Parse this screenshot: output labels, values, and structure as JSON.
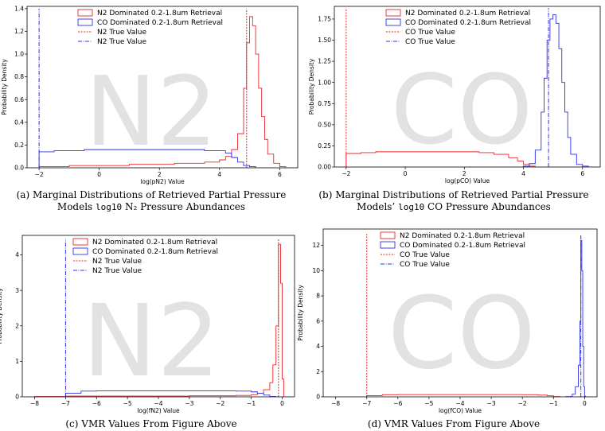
{
  "watermarks": [
    "N2",
    "CO",
    "N2",
    "CO"
  ],
  "colors": {
    "n2": "#e8262a",
    "co": "#2d31e8"
  },
  "captions": [
    {
      "line1": "(a) Marginal Distributions of Retrieved Partial Pressure",
      "line2_pre": "Models ",
      "line2_mono": "log10",
      "line2_post": " N₂ Pressure Abundances"
    },
    {
      "line1": "(b) Marginal Distributions of Retrieved Partial Pressure",
      "line2_pre": "Models’ ",
      "line2_mono": "log10",
      "line2_post": " CO Pressure Abundances"
    },
    {
      "line1": "(c) VMR Values From Figure Above",
      "line2_pre": "",
      "line2_mono": "",
      "line2_post": ""
    },
    {
      "line1": "(d) VMR Values From Figure Above",
      "line2_pre": "",
      "line2_mono": "",
      "line2_post": ""
    }
  ],
  "chart_data": [
    {
      "type": "histogram",
      "xlabel": "log(pN2) Value",
      "ylabel": "Probability Density",
      "xlim": [
        -2.4,
        6.6
      ],
      "ylim": [
        0,
        1.42
      ],
      "xticks": [
        -2,
        0,
        2,
        4,
        6
      ],
      "yticks": [
        0.0,
        0.2,
        0.4,
        0.6,
        0.8,
        1.0,
        1.2,
        1.4
      ],
      "ytick_labels": [
        "0.0",
        "0.2",
        "0.4",
        "0.6",
        "0.8",
        "1.0",
        "1.2",
        "1.4"
      ],
      "legend": [
        "N2 Dominated 0.2-1.8um Retrieval",
        "CO Dominated 0.2-1.8um Retrieval",
        "N2 True Value",
        "N2 True Value"
      ],
      "series": [
        {
          "name": "N2 Dominated 0.2-1.8um Retrieval",
          "color": "red",
          "style": "step",
          "x": [
            -2.0,
            -1.5,
            -1.0,
            -0.5,
            0.0,
            0.5,
            1.0,
            1.5,
            2.0,
            2.5,
            3.0,
            3.5,
            4.0,
            4.2,
            4.4,
            4.6,
            4.8,
            4.9,
            5.0,
            5.1,
            5.2,
            5.3,
            5.4,
            5.5,
            5.6,
            5.8,
            6.0
          ],
          "y": [
            0.01,
            0.01,
            0.02,
            0.02,
            0.02,
            0.02,
            0.03,
            0.03,
            0.03,
            0.04,
            0.04,
            0.05,
            0.07,
            0.1,
            0.16,
            0.3,
            0.7,
            1.1,
            1.33,
            1.25,
            1.0,
            0.7,
            0.45,
            0.25,
            0.12,
            0.04,
            0.01
          ]
        },
        {
          "name": "CO Dominated 0.2-1.8um Retrieval",
          "color": "blue",
          "style": "step",
          "x": [
            -2.0,
            -1.5,
            -1.0,
            -0.5,
            0.0,
            0.5,
            1.0,
            1.5,
            2.0,
            2.5,
            3.0,
            3.5,
            4.0,
            4.2,
            4.4,
            4.6,
            4.8,
            5.0
          ],
          "y": [
            0.14,
            0.15,
            0.15,
            0.16,
            0.16,
            0.16,
            0.16,
            0.16,
            0.16,
            0.16,
            0.16,
            0.15,
            0.15,
            0.13,
            0.09,
            0.05,
            0.02,
            0.01
          ]
        }
      ],
      "true_values": [
        {
          "name": "N2 True Value",
          "x": 4.9,
          "color": "red",
          "dash": "2,1.5",
          "ymax": 1.4
        },
        {
          "name": "N2 True Value",
          "x": -2.0,
          "color": "blue",
          "dash": "5,1.5,1,1.5",
          "ymax": 1.4
        }
      ]
    },
    {
      "type": "histogram",
      "xlabel": "log(pCO) Value",
      "ylabel": "Probability Density",
      "xlim": [
        -2.4,
        6.6
      ],
      "ylim": [
        0,
        1.9
      ],
      "xticks": [
        -2,
        0,
        2,
        4,
        6
      ],
      "yticks": [
        0.0,
        0.25,
        0.5,
        0.75,
        1.0,
        1.25,
        1.5,
        1.75
      ],
      "ytick_labels": [
        "0.00",
        "0.25",
        "0.50",
        "0.75",
        "1.00",
        "1.25",
        "1.50",
        "1.75"
      ],
      "legend": [
        "N2 Dominated 0.2-1.8um Retrieval",
        "CO Dominated 0.2-1.8um Retrieval",
        "CO True Value",
        "CO True Value"
      ],
      "series": [
        {
          "name": "N2 Dominated 0.2-1.8um Retrieval",
          "color": "red",
          "style": "step",
          "x": [
            -2.0,
            -1.5,
            -1.0,
            -0.5,
            0.0,
            0.5,
            1.0,
            1.5,
            2.0,
            2.5,
            3.0,
            3.5,
            3.8,
            4.0,
            4.2
          ],
          "y": [
            0.16,
            0.17,
            0.18,
            0.18,
            0.18,
            0.18,
            0.18,
            0.18,
            0.18,
            0.17,
            0.15,
            0.11,
            0.07,
            0.03,
            0.01
          ]
        },
        {
          "name": "CO Dominated 0.2-1.8um Retrieval",
          "color": "blue",
          "style": "step",
          "x": [
            4.0,
            4.2,
            4.4,
            4.6,
            4.7,
            4.8,
            4.9,
            5.0,
            5.1,
            5.2,
            5.3,
            5.4,
            5.5,
            5.6,
            5.8,
            6.0
          ],
          "y": [
            0.01,
            0.04,
            0.2,
            0.65,
            1.05,
            1.5,
            1.75,
            1.8,
            1.7,
            1.4,
            1.0,
            0.65,
            0.35,
            0.15,
            0.03,
            0.01
          ]
        }
      ],
      "true_values": [
        {
          "name": "CO True Value",
          "x": -2.0,
          "color": "red",
          "dash": "2,1.5",
          "ymax": 1.88
        },
        {
          "name": "CO True Value",
          "x": 4.85,
          "color": "blue",
          "dash": "5,1.5,1,1.5",
          "ymax": 1.88
        }
      ]
    },
    {
      "type": "histogram",
      "xlabel": "log(fN2) Value",
      "ylabel": "Probability Density",
      "xlim": [
        -8.4,
        0.4
      ],
      "ylim": [
        0,
        4.55
      ],
      "xticks": [
        -8,
        -7,
        -6,
        -5,
        -4,
        -3,
        -2,
        -1,
        0
      ],
      "yticks": [
        0,
        1,
        2,
        3,
        4
      ],
      "ytick_labels": [
        "0",
        "1",
        "2",
        "3",
        "4"
      ],
      "legend": [
        "N2 Dominated 0.2-1.8um Retrieval",
        "CO Dominated 0.2-1.8um Retrieval",
        "N2 True Value",
        "N2 True Value"
      ],
      "series": [
        {
          "name": "N2 Dominated 0.2-1.8um Retrieval",
          "color": "red",
          "style": "step",
          "x": [
            -8.0,
            -7.0,
            -6.0,
            -5.0,
            -4.0,
            -3.0,
            -2.0,
            -1.5,
            -1.0,
            -0.8,
            -0.6,
            -0.4,
            -0.3,
            -0.2,
            -0.12,
            -0.05,
            0.0
          ],
          "y": [
            0.01,
            0.02,
            0.02,
            0.02,
            0.02,
            0.03,
            0.03,
            0.04,
            0.06,
            0.1,
            0.2,
            0.4,
            0.9,
            2.0,
            4.3,
            3.2,
            0.5
          ]
        },
        {
          "name": "CO Dominated 0.2-1.8um Retrieval",
          "color": "blue",
          "style": "step",
          "x": [
            -7.0,
            -6.5,
            -6.0,
            -5.0,
            -4.0,
            -3.0,
            -2.0,
            -1.5,
            -1.0,
            -0.8,
            -0.6,
            -0.4
          ],
          "y": [
            0.1,
            0.16,
            0.17,
            0.17,
            0.17,
            0.17,
            0.17,
            0.16,
            0.14,
            0.1,
            0.05,
            0.01
          ]
        }
      ],
      "true_values": [
        {
          "name": "N2 True Value",
          "x": -0.12,
          "color": "red",
          "dash": "2,1.5",
          "ymax": 4.45
        },
        {
          "name": "N2 True Value",
          "x": -7.0,
          "color": "blue",
          "dash": "5,1.5,1,1.5",
          "ymax": 4.45
        }
      ]
    },
    {
      "type": "histogram",
      "xlabel": "log(fCO) Value",
      "ylabel": "Probability Density",
      "xlim": [
        -8.4,
        0.4
      ],
      "ylim": [
        0,
        13.3
      ],
      "xticks": [
        -8,
        -7,
        -6,
        -5,
        -4,
        -3,
        -2,
        -1,
        0
      ],
      "yticks": [
        0,
        2,
        4,
        6,
        8,
        10,
        12
      ],
      "ytick_labels": [
        "0",
        "2",
        "4",
        "6",
        "8",
        "10",
        "12"
      ],
      "legend": [
        "N2 Dominated 0.2-1.8um Retrieval",
        "CO Dominated 0.2-1.8um Retrieval",
        "CO True Value",
        "CO True Value"
      ],
      "series": [
        {
          "name": "N2 Dominated 0.2-1.8um Retrieval",
          "color": "red",
          "style": "step",
          "x": [
            -7.0,
            -6.5,
            -6.0,
            -5.0,
            -4.0,
            -3.0,
            -2.0,
            -1.5,
            -1.2,
            -1.0
          ],
          "y": [
            0.1,
            0.17,
            0.18,
            0.18,
            0.18,
            0.18,
            0.17,
            0.14,
            0.08,
            0.02
          ]
        },
        {
          "name": "CO Dominated 0.2-1.8um Retrieval",
          "color": "blue",
          "style": "step",
          "x": [
            -0.6,
            -0.4,
            -0.3,
            -0.2,
            -0.15,
            -0.12,
            -0.09,
            -0.06,
            -0.03,
            0.0
          ],
          "y": [
            0.02,
            0.2,
            0.8,
            2.5,
            6.0,
            12.4,
            10.0,
            4.0,
            0.8,
            0.05
          ]
        }
      ],
      "true_values": [
        {
          "name": "CO True Value",
          "x": -7.0,
          "color": "red",
          "dash": "2,1.5",
          "ymax": 12.9
        },
        {
          "name": "CO True Value",
          "x": -0.12,
          "color": "blue",
          "dash": "5,1.5,1,1.5",
          "ymax": 12.9
        }
      ]
    }
  ]
}
